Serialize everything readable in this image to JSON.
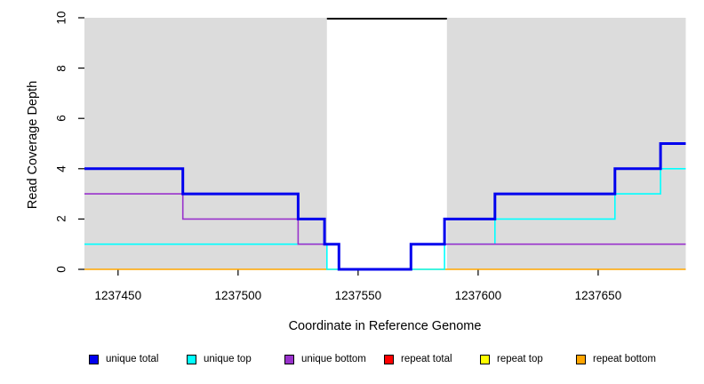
{
  "figure": {
    "background_color": "#ffffff",
    "plot_background_color": "#dcdcdc",
    "axis_color": "#000000"
  },
  "chart_data": {
    "type": "line",
    "subtype": "step-coverage",
    "title": "",
    "xlabel": "Coordinate in Reference Genome",
    "ylabel": "Read Coverage Depth",
    "xlim": [
      1237436,
      1237686.5
    ],
    "ylim": [
      0,
      10
    ],
    "grid": false,
    "legend_position": "bottom",
    "x_ticks": [
      {
        "value": 1237450,
        "label": "1237450"
      },
      {
        "value": 1237500,
        "label": "1237500"
      },
      {
        "value": 1237550,
        "label": "1237550"
      },
      {
        "value": 1237600,
        "label": "1237600"
      },
      {
        "value": 1237650,
        "label": "1237650"
      }
    ],
    "y_ticks": [
      {
        "value": 0,
        "label": "0"
      },
      {
        "value": 2,
        "label": "2"
      },
      {
        "value": 4,
        "label": "4"
      },
      {
        "value": 6,
        "label": "6"
      },
      {
        "value": 8,
        "label": "8"
      },
      {
        "value": 10,
        "label": "10"
      }
    ],
    "highlight_band": {
      "name": "repeat-region",
      "x_start": 1237537,
      "x_end": 1237587,
      "color": "#ffffff",
      "marker_y": 10,
      "marker_color": "#000000",
      "marker_width": 2
    },
    "series": [
      {
        "name": "repeat bottom",
        "color": "#FFA500",
        "width": 1.6,
        "steps": [
          [
            1237436,
            0
          ]
        ]
      },
      {
        "name": "unique top",
        "color": "#00FFFF",
        "width": 1.6,
        "steps": [
          [
            1237436,
            1
          ],
          [
            1237537,
            0
          ],
          [
            1237586,
            1
          ],
          [
            1237607,
            2
          ],
          [
            1237657,
            3
          ],
          [
            1237676,
            4
          ]
        ]
      },
      {
        "name": "unique bottom",
        "color": "#9932CC",
        "width": 1.6,
        "steps": [
          [
            1237436,
            3
          ],
          [
            1237477,
            2
          ],
          [
            1237525,
            1
          ],
          [
            1237542,
            0
          ],
          [
            1237572,
            1
          ]
        ]
      },
      {
        "name": "unique total",
        "color": "#0000EE",
        "width": 3,
        "steps": [
          [
            1237436,
            4
          ],
          [
            1237477,
            3
          ],
          [
            1237525,
            2
          ],
          [
            1237536,
            1
          ],
          [
            1237542,
            0
          ],
          [
            1237572,
            1
          ],
          [
            1237586,
            2
          ],
          [
            1237607,
            3
          ],
          [
            1237657,
            4
          ],
          [
            1237676,
            5
          ]
        ]
      }
    ],
    "legend": [
      {
        "label": "unique total",
        "color": "#0000EE"
      },
      {
        "label": "unique top",
        "color": "#00FFFF"
      },
      {
        "label": "unique bottom",
        "color": "#9932CC"
      },
      {
        "label": "repeat total",
        "color": "#FF0000"
      },
      {
        "label": "repeat top",
        "color": "#FFFF00"
      },
      {
        "label": "repeat bottom",
        "color": "#FFA500"
      }
    ]
  }
}
